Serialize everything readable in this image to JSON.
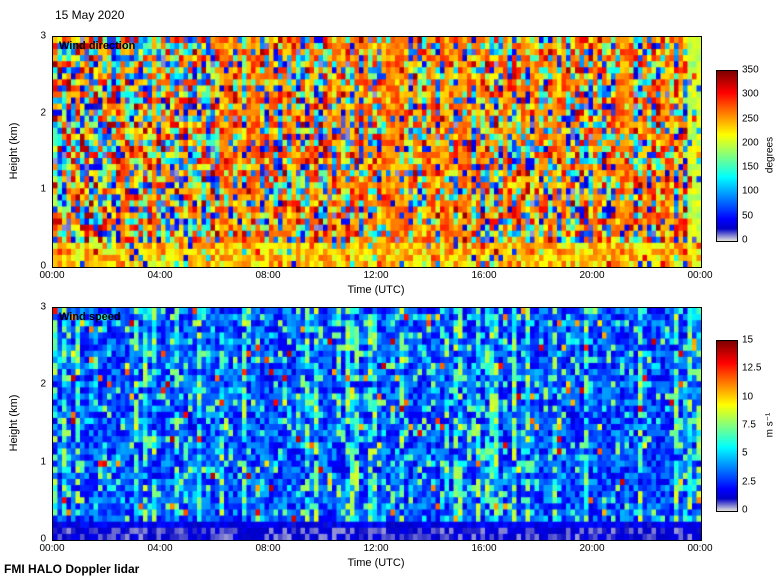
{
  "figure": {
    "date": "15 May 2020",
    "footer": "FMI HALO Doppler lidar"
  },
  "chart_data": [
    {
      "type": "heatmap",
      "variable": "direction",
      "title": "Wind direction",
      "xlabel": "Time (UTC)",
      "ylabel": "Height (km)",
      "x_ticks": [
        "00:00",
        "04:00",
        "08:00",
        "12:00",
        "16:00",
        "20:00",
        "00:00"
      ],
      "y_ticks": [
        0,
        1,
        2,
        3
      ],
      "x_range_hours": [
        0,
        24
      ],
      "y_range_km": [
        0,
        3
      ],
      "colorbar": {
        "label": "degrees",
        "min": 0,
        "max": 350,
        "ticks": [
          0,
          50,
          100,
          150,
          200,
          250,
          300,
          350
        ]
      },
      "grid": {
        "cols": 144,
        "rows": 38
      },
      "seed": 20200515,
      "pattern": {
        "orange_band_hours": [
          12.1,
          15.9
        ],
        "orange_band_col_prob": 0.85,
        "secondary_band_hours": [
          6.3,
          8.9
        ],
        "secondary_band_col_prob": 0.5,
        "base_orange_col_prob": 0.2,
        "surface_layer_top_km": 0.35,
        "surface_orange_prob": 0.8,
        "right_edge_yellow_from_hour": 23.5
      },
      "summary": "Wind direction is highly variable with height and time (multicoloured speckle over full 0-360 range); a persistent orange-red sector (~180-250 degrees) spans the whole 0-3 km column from about 12:00 to 16:00 UTC, and a shallow orange-yellow layer below ~0.4 km persists through most of the day; a yellow column appears at the far right edge near 24:00."
    },
    {
      "type": "heatmap",
      "variable": "speed",
      "title": "Wind speed",
      "xlabel": "Time (UTC)",
      "ylabel": "Height (km)",
      "x_ticks": [
        "00:00",
        "04:00",
        "08:00",
        "12:00",
        "16:00",
        "20:00",
        "00:00"
      ],
      "y_ticks": [
        0,
        1,
        2,
        3
      ],
      "x_range_hours": [
        0,
        24
      ],
      "y_range_km": [
        0,
        3
      ],
      "colorbar": {
        "label": "m s⁻¹",
        "min": 0,
        "max": 15,
        "ticks": [
          0,
          2.5,
          5,
          7.5,
          10,
          12.5,
          15
        ]
      },
      "grid": {
        "cols": 144,
        "rows": 38
      },
      "seed": 51502020,
      "pattern": {
        "surface_layer_top_km": 0.26,
        "green_band_hours": [
          [
            0,
            1.3
          ],
          [
            10.5,
            16.5
          ],
          [
            23.4,
            24
          ]
        ],
        "green_col_prob_in_band": 0.38,
        "green_col_prob_base": 0.13,
        "green_cell_prob": 0.12,
        "warm_speck_prob": 0.03
      },
      "summary": "Wind speeds are mostly low, about 1-6 m/s (blue speckle); a calm pale layer below ~0.3 km shows speeds under ~2 m/s all day; intermittent green vertical streaks of ~7-10 m/s occur, most prominently between ~11:00 and 16:00 UTC and near both day edges; rare orange-red specks exceed 10 m/s."
    }
  ]
}
